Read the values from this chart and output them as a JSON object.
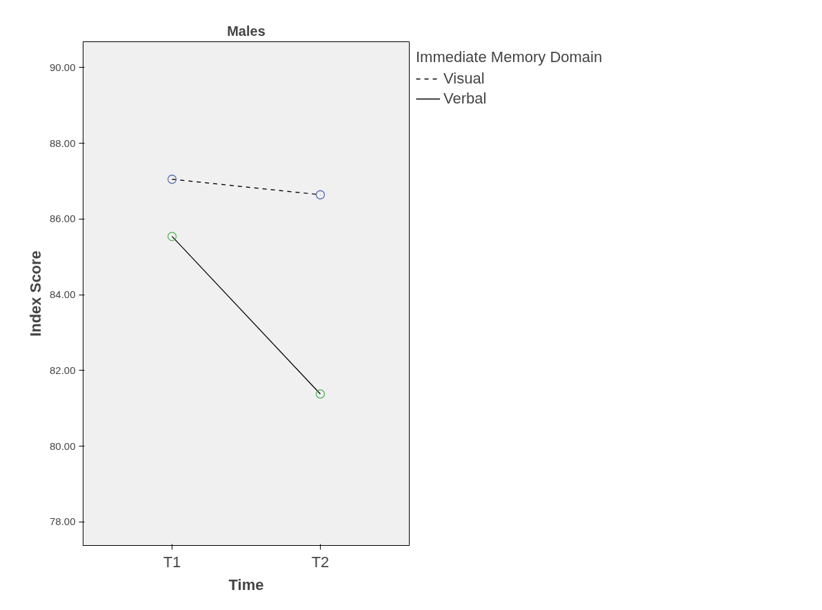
{
  "chart_data": {
    "type": "line",
    "title": "Males",
    "xlabel": "Time",
    "ylabel": "Index Score",
    "legend_title": "Immediate Memory Domain",
    "categories": [
      "T1",
      "T2"
    ],
    "series": [
      {
        "name": "Visual",
        "color": "#5a6fb0",
        "values": [
          87.05,
          86.64
        ],
        "line_style": "dashed"
      },
      {
        "name": "Verbal",
        "color": "#4caf50",
        "values": [
          85.54,
          81.38
        ],
        "line_style": "solid"
      }
    ],
    "ylim": [
      77.38,
      90.68
    ],
    "yticks": [
      {
        "value": 78,
        "label": "78.00"
      },
      {
        "value": 80,
        "label": "80.00"
      },
      {
        "value": 82,
        "label": "82.00"
      },
      {
        "value": 84,
        "label": "84.00"
      },
      {
        "value": 86,
        "label": "86.00"
      },
      {
        "value": 88,
        "label": "88.00"
      },
      {
        "value": 90,
        "label": "90.00"
      }
    ],
    "grid": false,
    "legend": "top right",
    "marker": "circle"
  }
}
